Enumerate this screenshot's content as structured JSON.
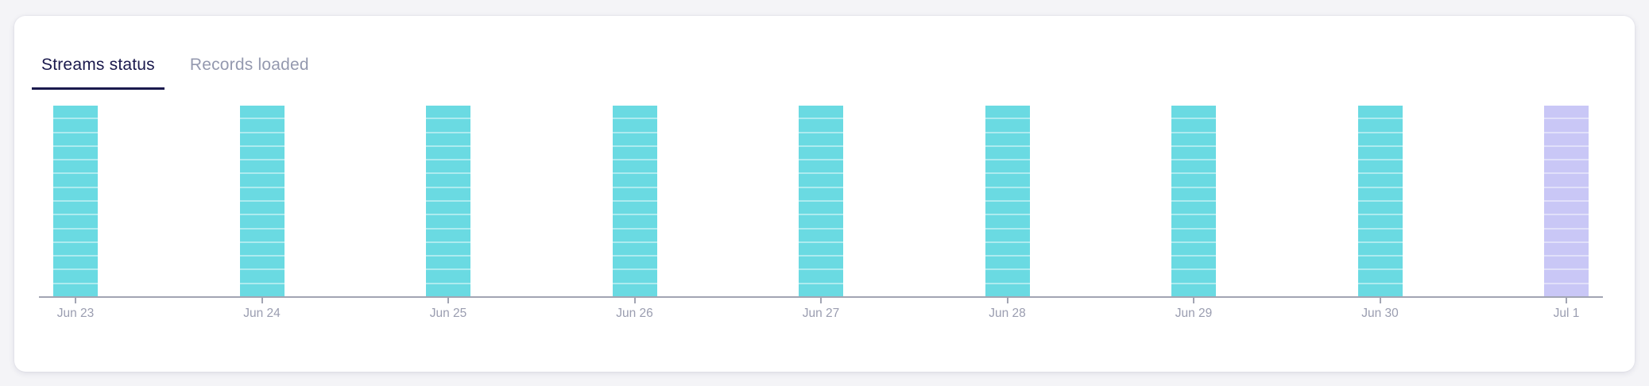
{
  "tabs": [
    {
      "label": "Streams status",
      "active": true
    },
    {
      "label": "Records loaded",
      "active": false
    }
  ],
  "chart_data": {
    "type": "bar",
    "subtype": "segmented-daily-status",
    "title": "",
    "xlabel": "",
    "ylabel": "",
    "categories": [
      "Jun 23",
      "Jun 24",
      "Jun 25",
      "Jun 26",
      "Jun 27",
      "Jun 28",
      "Jun 29",
      "Jun 30",
      "Jul 1"
    ],
    "series": [
      {
        "name": "streams status",
        "values": [
          14,
          14,
          14,
          14,
          14,
          14,
          14,
          14,
          14
        ],
        "statuses": [
          "synced",
          "synced",
          "synced",
          "synced",
          "synced",
          "synced",
          "synced",
          "synced",
          "pending"
        ]
      }
    ],
    "segments_per_bar": 14,
    "ylim": [
      0,
      14
    ],
    "grid": false,
    "legend": "none"
  },
  "colors": {
    "synced": "#6ADAE2",
    "pending": "#C9C7F6",
    "segment_divider": "rgba(255,255,255,0.45)",
    "axis": "#A2A5B3",
    "label": "#9A9DB0",
    "tab_active": "#1A194D",
    "tab_inactive": "#9499AF",
    "card_bg": "#FFFFFF",
    "page_bg": "#F4F4F7"
  }
}
